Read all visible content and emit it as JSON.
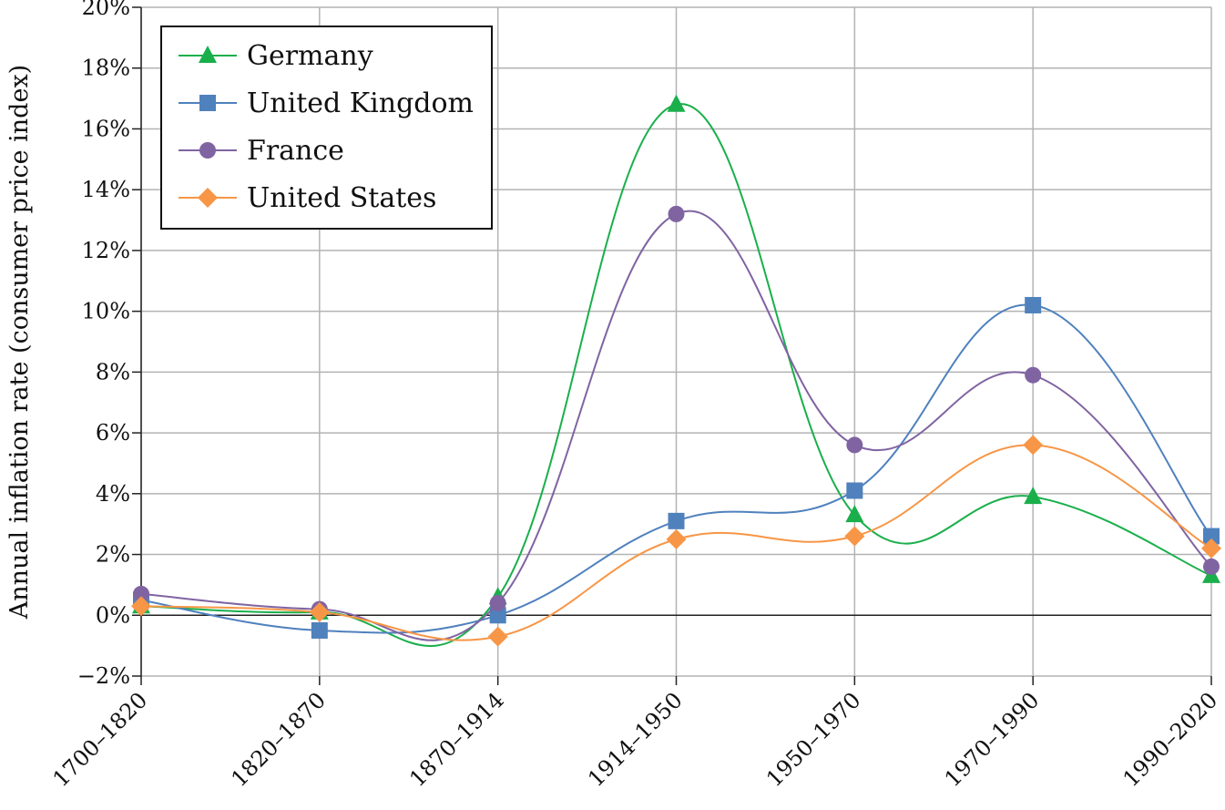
{
  "chart_data": {
    "type": "line",
    "title": "",
    "xlabel": "",
    "ylabel": "Annual inflation rate (consumer price index)",
    "categories": [
      "1700–1820",
      "1820–1870",
      "1870–1914",
      "1914–1950",
      "1950–1970",
      "1970–1990",
      "1990–2020"
    ],
    "ylim": [
      -2,
      20
    ],
    "yticks": [
      -2,
      0,
      2,
      4,
      6,
      8,
      10,
      12,
      14,
      16,
      18,
      20
    ],
    "ytick_labels": [
      "−2%",
      "0%",
      "2%",
      "4%",
      "6%",
      "8%",
      "10%",
      "12%",
      "14%",
      "16%",
      "18%",
      "20%"
    ],
    "grid": true,
    "legend": "top-left",
    "series": [
      {
        "name": "Germany",
        "color": "#1aaf4b",
        "marker": "triangle",
        "values": [
          0.3,
          0.1,
          0.6,
          16.8,
          3.3,
          3.9,
          1.3
        ]
      },
      {
        "name": "United Kingdom",
        "color": "#4f81bd",
        "marker": "square",
        "values": [
          0.5,
          -0.5,
          0.0,
          3.1,
          4.1,
          10.2,
          2.6
        ]
      },
      {
        "name": "France",
        "color": "#8064a2",
        "marker": "circle",
        "values": [
          0.7,
          0.2,
          0.4,
          13.2,
          5.6,
          7.9,
          1.6
        ]
      },
      {
        "name": "United States",
        "color": "#f79646",
        "marker": "diamond",
        "values": [
          0.3,
          0.1,
          -0.7,
          2.5,
          2.6,
          5.6,
          2.2
        ]
      }
    ]
  }
}
